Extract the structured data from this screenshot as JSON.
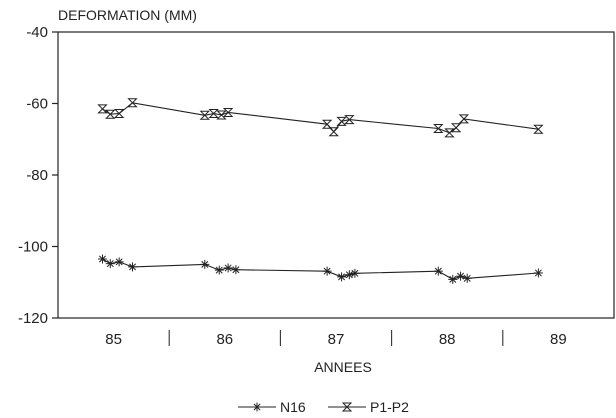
{
  "chart_data": {
    "type": "line",
    "ylabel": "DEFORMATION (MM)",
    "xlabel": "ANNEES",
    "ylim": [
      -120,
      -40
    ],
    "xlim": [
      84.5,
      89.5
    ],
    "yticks": [
      -40,
      -60,
      -80,
      -100,
      -120
    ],
    "ytick_labels": [
      "-40",
      "-60",
      "-80",
      "-100",
      "-120"
    ],
    "xtick_labels": [
      {
        "label": "85",
        "x": 85
      },
      {
        "label": "86",
        "x": 86
      },
      {
        "label": "87",
        "x": 87
      },
      {
        "label": "88",
        "x": 88
      },
      {
        "label": "89",
        "x": 89
      }
    ],
    "year_dividers": [
      85.5,
      86.5,
      87.5,
      88.5
    ],
    "grid": false,
    "legend_position": "bottom-center",
    "series": [
      {
        "name": "N16",
        "marker": "asterisk",
        "x": [
          84.9,
          84.97,
          85.05,
          85.17,
          85.82,
          85.95,
          86.03,
          86.1,
          86.92,
          87.05,
          87.12,
          87.17,
          87.92,
          88.05,
          88.12,
          88.18,
          88.82
        ],
        "values": [
          -103.5,
          -104.8,
          -104.3,
          -105.7,
          -105.0,
          -106.6,
          -106.0,
          -106.5,
          -106.9,
          -108.5,
          -107.9,
          -107.5,
          -106.9,
          -109.2,
          -108.3,
          -108.9,
          -107.4
        ]
      },
      {
        "name": "P1-P2",
        "marker": "hourglass",
        "x": [
          84.9,
          84.97,
          85.05,
          85.17,
          85.82,
          85.9,
          85.97,
          86.03,
          86.92,
          86.98,
          87.05,
          87.12,
          87.92,
          88.02,
          88.08,
          88.15,
          88.82
        ],
        "values": [
          -61.5,
          -63.0,
          -62.8,
          -59.8,
          -63.3,
          -62.8,
          -63.2,
          -62.5,
          -65.8,
          -67.9,
          -65.0,
          -64.5,
          -67.0,
          -68.2,
          -66.8,
          -64.3,
          -67.2
        ]
      }
    ]
  }
}
